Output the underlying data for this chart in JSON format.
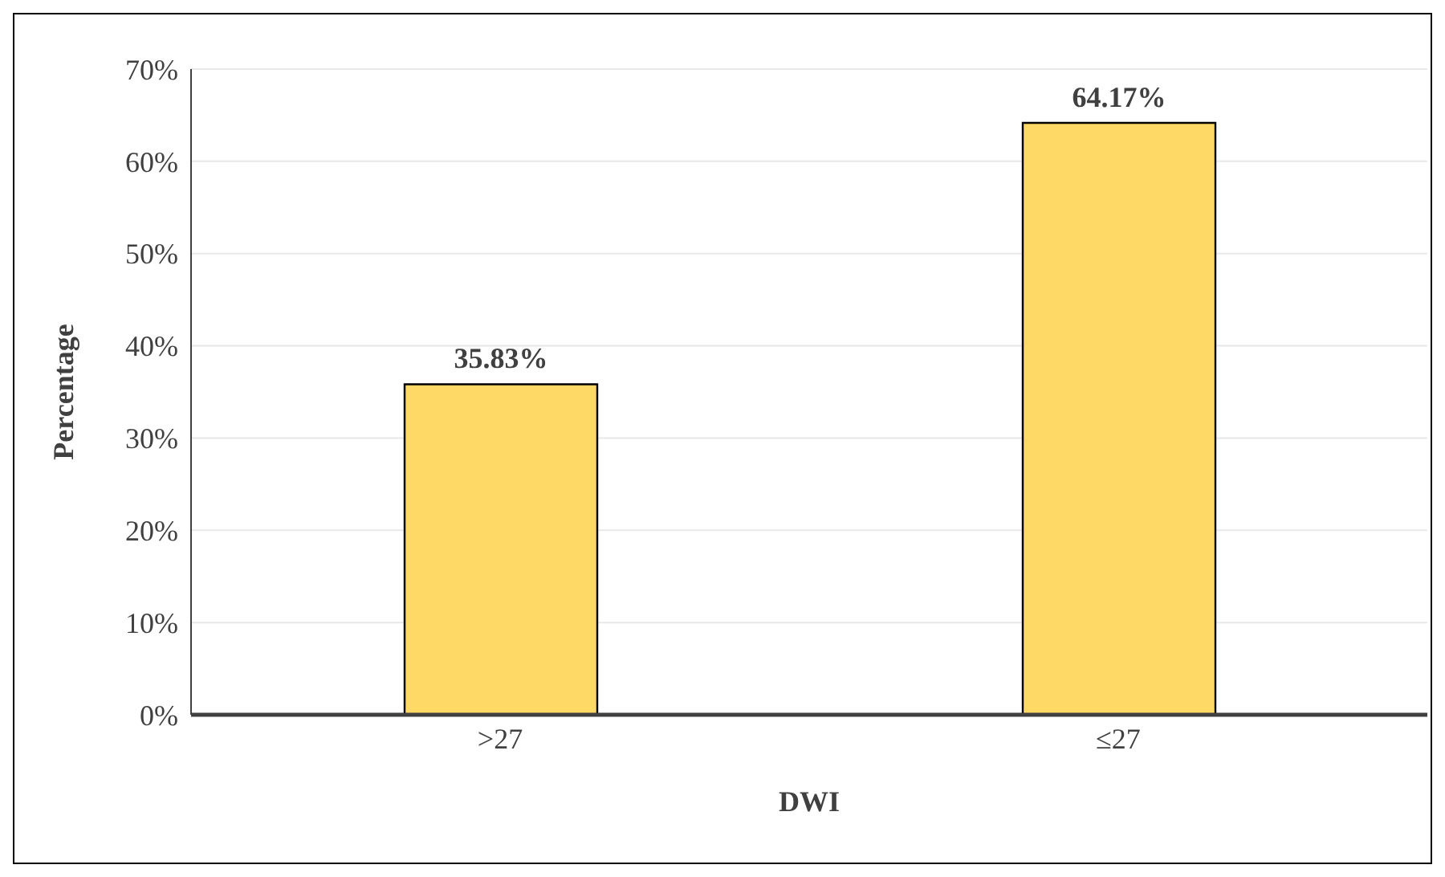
{
  "chart_data": {
    "type": "bar",
    "xlabel": "DWI",
    "ylabel": "Percentage",
    "categories": [
      ">27",
      "≤27"
    ],
    "values": [
      35.83,
      64.17
    ],
    "value_labels": [
      "35.83%",
      "64.17%"
    ],
    "color": "#ffd966",
    "ylim": [
      0,
      70
    ],
    "yticks": [
      {
        "value": 0,
        "label": "0%"
      },
      {
        "value": 10,
        "label": "10%"
      },
      {
        "value": 20,
        "label": "20%"
      },
      {
        "value": 30,
        "label": "30%"
      },
      {
        "value": 40,
        "label": "40%"
      },
      {
        "value": 50,
        "label": "50%"
      },
      {
        "value": 60,
        "label": "60%"
      },
      {
        "value": 70,
        "label": "70%"
      }
    ],
    "grid": "y"
  }
}
